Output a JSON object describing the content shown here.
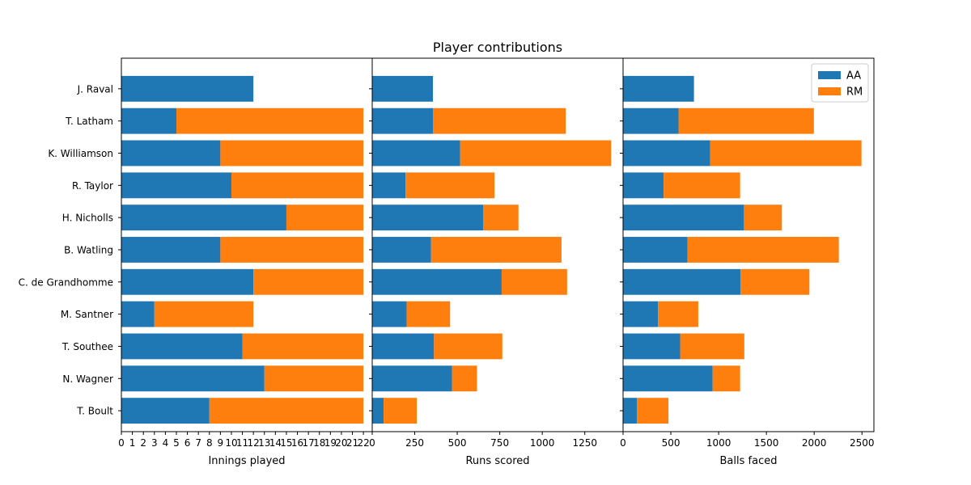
{
  "chart_data": {
    "type": "bar",
    "orientation": "horizontal",
    "stacked": true,
    "title": "Player contributions",
    "categories": [
      "J. Raval",
      "T. Latham",
      "K. Williamson",
      "R. Taylor",
      "H. Nicholls",
      "B. Watling",
      "C. de Grandhomme",
      "M. Santner",
      "T. Southee",
      "N. Wagner",
      "T. Boult"
    ],
    "colors": {
      "AA": "#1f77b4",
      "RM": "#ff7f0e"
    },
    "legend": {
      "entries": [
        "AA",
        "RM"
      ],
      "placement": "top-right",
      "panel": 2
    },
    "panels": [
      {
        "xlabel": "Innings played",
        "xlim": [
          0,
          22.8
        ],
        "xticks": [
          0,
          1,
          2,
          3,
          4,
          5,
          6,
          7,
          8,
          9,
          10,
          11,
          12,
          13,
          14,
          15,
          16,
          17,
          18,
          19,
          20,
          21,
          22
        ],
        "series": [
          {
            "name": "AA",
            "values": [
              12,
              5,
              9,
              10,
              15,
              9,
              12,
              3,
              11,
              13,
              8
            ]
          },
          {
            "name": "RM",
            "values": [
              0,
              17,
              13,
              12,
              7,
              13,
              10,
              9,
              11,
              9,
              14
            ]
          }
        ]
      },
      {
        "xlabel": "Runs scored",
        "xlim": [
          0,
          1475
        ],
        "xticks": [
          0,
          250,
          500,
          750,
          1000,
          1250
        ],
        "series": [
          {
            "name": "AA",
            "values": [
              357,
              357,
              517,
              196,
              652,
              346,
              761,
              202,
              363,
              469,
              67
            ]
          },
          {
            "name": "RM",
            "values": [
              0,
              781,
              888,
              523,
              208,
              767,
              385,
              256,
              402,
              147,
              195
            ]
          }
        ]
      },
      {
        "xlabel": "Balls faced",
        "xlim": [
          0,
          2625
        ],
        "xticks": [
          0,
          500,
          1000,
          1500,
          2000,
          2500
        ],
        "series": [
          {
            "name": "AA",
            "values": [
              742,
              580,
              912,
              425,
              1265,
              675,
              1230,
              365,
              597,
              937,
              145
            ]
          },
          {
            "name": "RM",
            "values": [
              0,
              1417,
              1583,
              800,
              397,
              1583,
              720,
              422,
              672,
              288,
              330
            ]
          }
        ]
      }
    ]
  }
}
